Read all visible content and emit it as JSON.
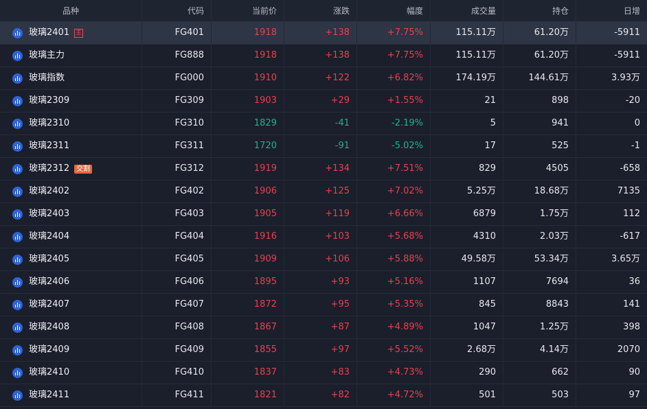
{
  "headers": [
    "品种",
    "代码",
    "当前价",
    "涨跌",
    "幅度",
    "成交量",
    "持仓",
    "日增"
  ],
  "colors": {
    "up": "#e2434f",
    "down": "#1fb28a",
    "badge_main": "#e0505a",
    "badge_delivery": "#e8663c",
    "icon": "#2f64d8"
  },
  "icon_name": "bar-chart-icon",
  "rows": [
    {
      "name": "玻璃2401",
      "badge": "主",
      "badge_type": "main",
      "code": "FG401",
      "price": "1918",
      "change": "+138",
      "pct": "+7.75%",
      "volume": "115.11万",
      "oi": "61.20万",
      "daily": "-5911",
      "dir": "up",
      "selected": true
    },
    {
      "name": "玻璃主力",
      "badge": "",
      "badge_type": "",
      "code": "FG888",
      "price": "1918",
      "change": "+138",
      "pct": "+7.75%",
      "volume": "115.11万",
      "oi": "61.20万",
      "daily": "-5911",
      "dir": "up",
      "selected": false
    },
    {
      "name": "玻璃指数",
      "badge": "",
      "badge_type": "",
      "code": "FG000",
      "price": "1910",
      "change": "+122",
      "pct": "+6.82%",
      "volume": "174.19万",
      "oi": "144.61万",
      "daily": "3.93万",
      "dir": "up",
      "selected": false
    },
    {
      "name": "玻璃2309",
      "badge": "",
      "badge_type": "",
      "code": "FG309",
      "price": "1903",
      "change": "+29",
      "pct": "+1.55%",
      "volume": "21",
      "oi": "898",
      "daily": "-20",
      "dir": "up",
      "selected": false
    },
    {
      "name": "玻璃2310",
      "badge": "",
      "badge_type": "",
      "code": "FG310",
      "price": "1829",
      "change": "-41",
      "pct": "-2.19%",
      "volume": "5",
      "oi": "941",
      "daily": "0",
      "dir": "down",
      "selected": false
    },
    {
      "name": "玻璃2311",
      "badge": "",
      "badge_type": "",
      "code": "FG311",
      "price": "1720",
      "change": "-91",
      "pct": "-5.02%",
      "volume": "17",
      "oi": "525",
      "daily": "-1",
      "dir": "down",
      "selected": false
    },
    {
      "name": "玻璃2312",
      "badge": "交割",
      "badge_type": "delivery",
      "code": "FG312",
      "price": "1919",
      "change": "+134",
      "pct": "+7.51%",
      "volume": "829",
      "oi": "4505",
      "daily": "-658",
      "dir": "up",
      "selected": false
    },
    {
      "name": "玻璃2402",
      "badge": "",
      "badge_type": "",
      "code": "FG402",
      "price": "1906",
      "change": "+125",
      "pct": "+7.02%",
      "volume": "5.25万",
      "oi": "18.68万",
      "daily": "7135",
      "dir": "up",
      "selected": false
    },
    {
      "name": "玻璃2403",
      "badge": "",
      "badge_type": "",
      "code": "FG403",
      "price": "1905",
      "change": "+119",
      "pct": "+6.66%",
      "volume": "6879",
      "oi": "1.75万",
      "daily": "112",
      "dir": "up",
      "selected": false
    },
    {
      "name": "玻璃2404",
      "badge": "",
      "badge_type": "",
      "code": "FG404",
      "price": "1916",
      "change": "+103",
      "pct": "+5.68%",
      "volume": "4310",
      "oi": "2.03万",
      "daily": "-617",
      "dir": "up",
      "selected": false
    },
    {
      "name": "玻璃2405",
      "badge": "",
      "badge_type": "",
      "code": "FG405",
      "price": "1909",
      "change": "+106",
      "pct": "+5.88%",
      "volume": "49.58万",
      "oi": "53.34万",
      "daily": "3.65万",
      "dir": "up",
      "selected": false
    },
    {
      "name": "玻璃2406",
      "badge": "",
      "badge_type": "",
      "code": "FG406",
      "price": "1895",
      "change": "+93",
      "pct": "+5.16%",
      "volume": "1107",
      "oi": "7694",
      "daily": "36",
      "dir": "up",
      "selected": false
    },
    {
      "name": "玻璃2407",
      "badge": "",
      "badge_type": "",
      "code": "FG407",
      "price": "1872",
      "change": "+95",
      "pct": "+5.35%",
      "volume": "845",
      "oi": "8843",
      "daily": "141",
      "dir": "up",
      "selected": false
    },
    {
      "name": "玻璃2408",
      "badge": "",
      "badge_type": "",
      "code": "FG408",
      "price": "1867",
      "change": "+87",
      "pct": "+4.89%",
      "volume": "1047",
      "oi": "1.25万",
      "daily": "398",
      "dir": "up",
      "selected": false
    },
    {
      "name": "玻璃2409",
      "badge": "",
      "badge_type": "",
      "code": "FG409",
      "price": "1855",
      "change": "+97",
      "pct": "+5.52%",
      "volume": "2.68万",
      "oi": "4.14万",
      "daily": "2070",
      "dir": "up",
      "selected": false
    },
    {
      "name": "玻璃2410",
      "badge": "",
      "badge_type": "",
      "code": "FG410",
      "price": "1837",
      "change": "+83",
      "pct": "+4.73%",
      "volume": "290",
      "oi": "662",
      "daily": "90",
      "dir": "up",
      "selected": false
    },
    {
      "name": "玻璃2411",
      "badge": "",
      "badge_type": "",
      "code": "FG411",
      "price": "1821",
      "change": "+82",
      "pct": "+4.72%",
      "volume": "501",
      "oi": "503",
      "daily": "97",
      "dir": "up",
      "selected": false
    }
  ]
}
